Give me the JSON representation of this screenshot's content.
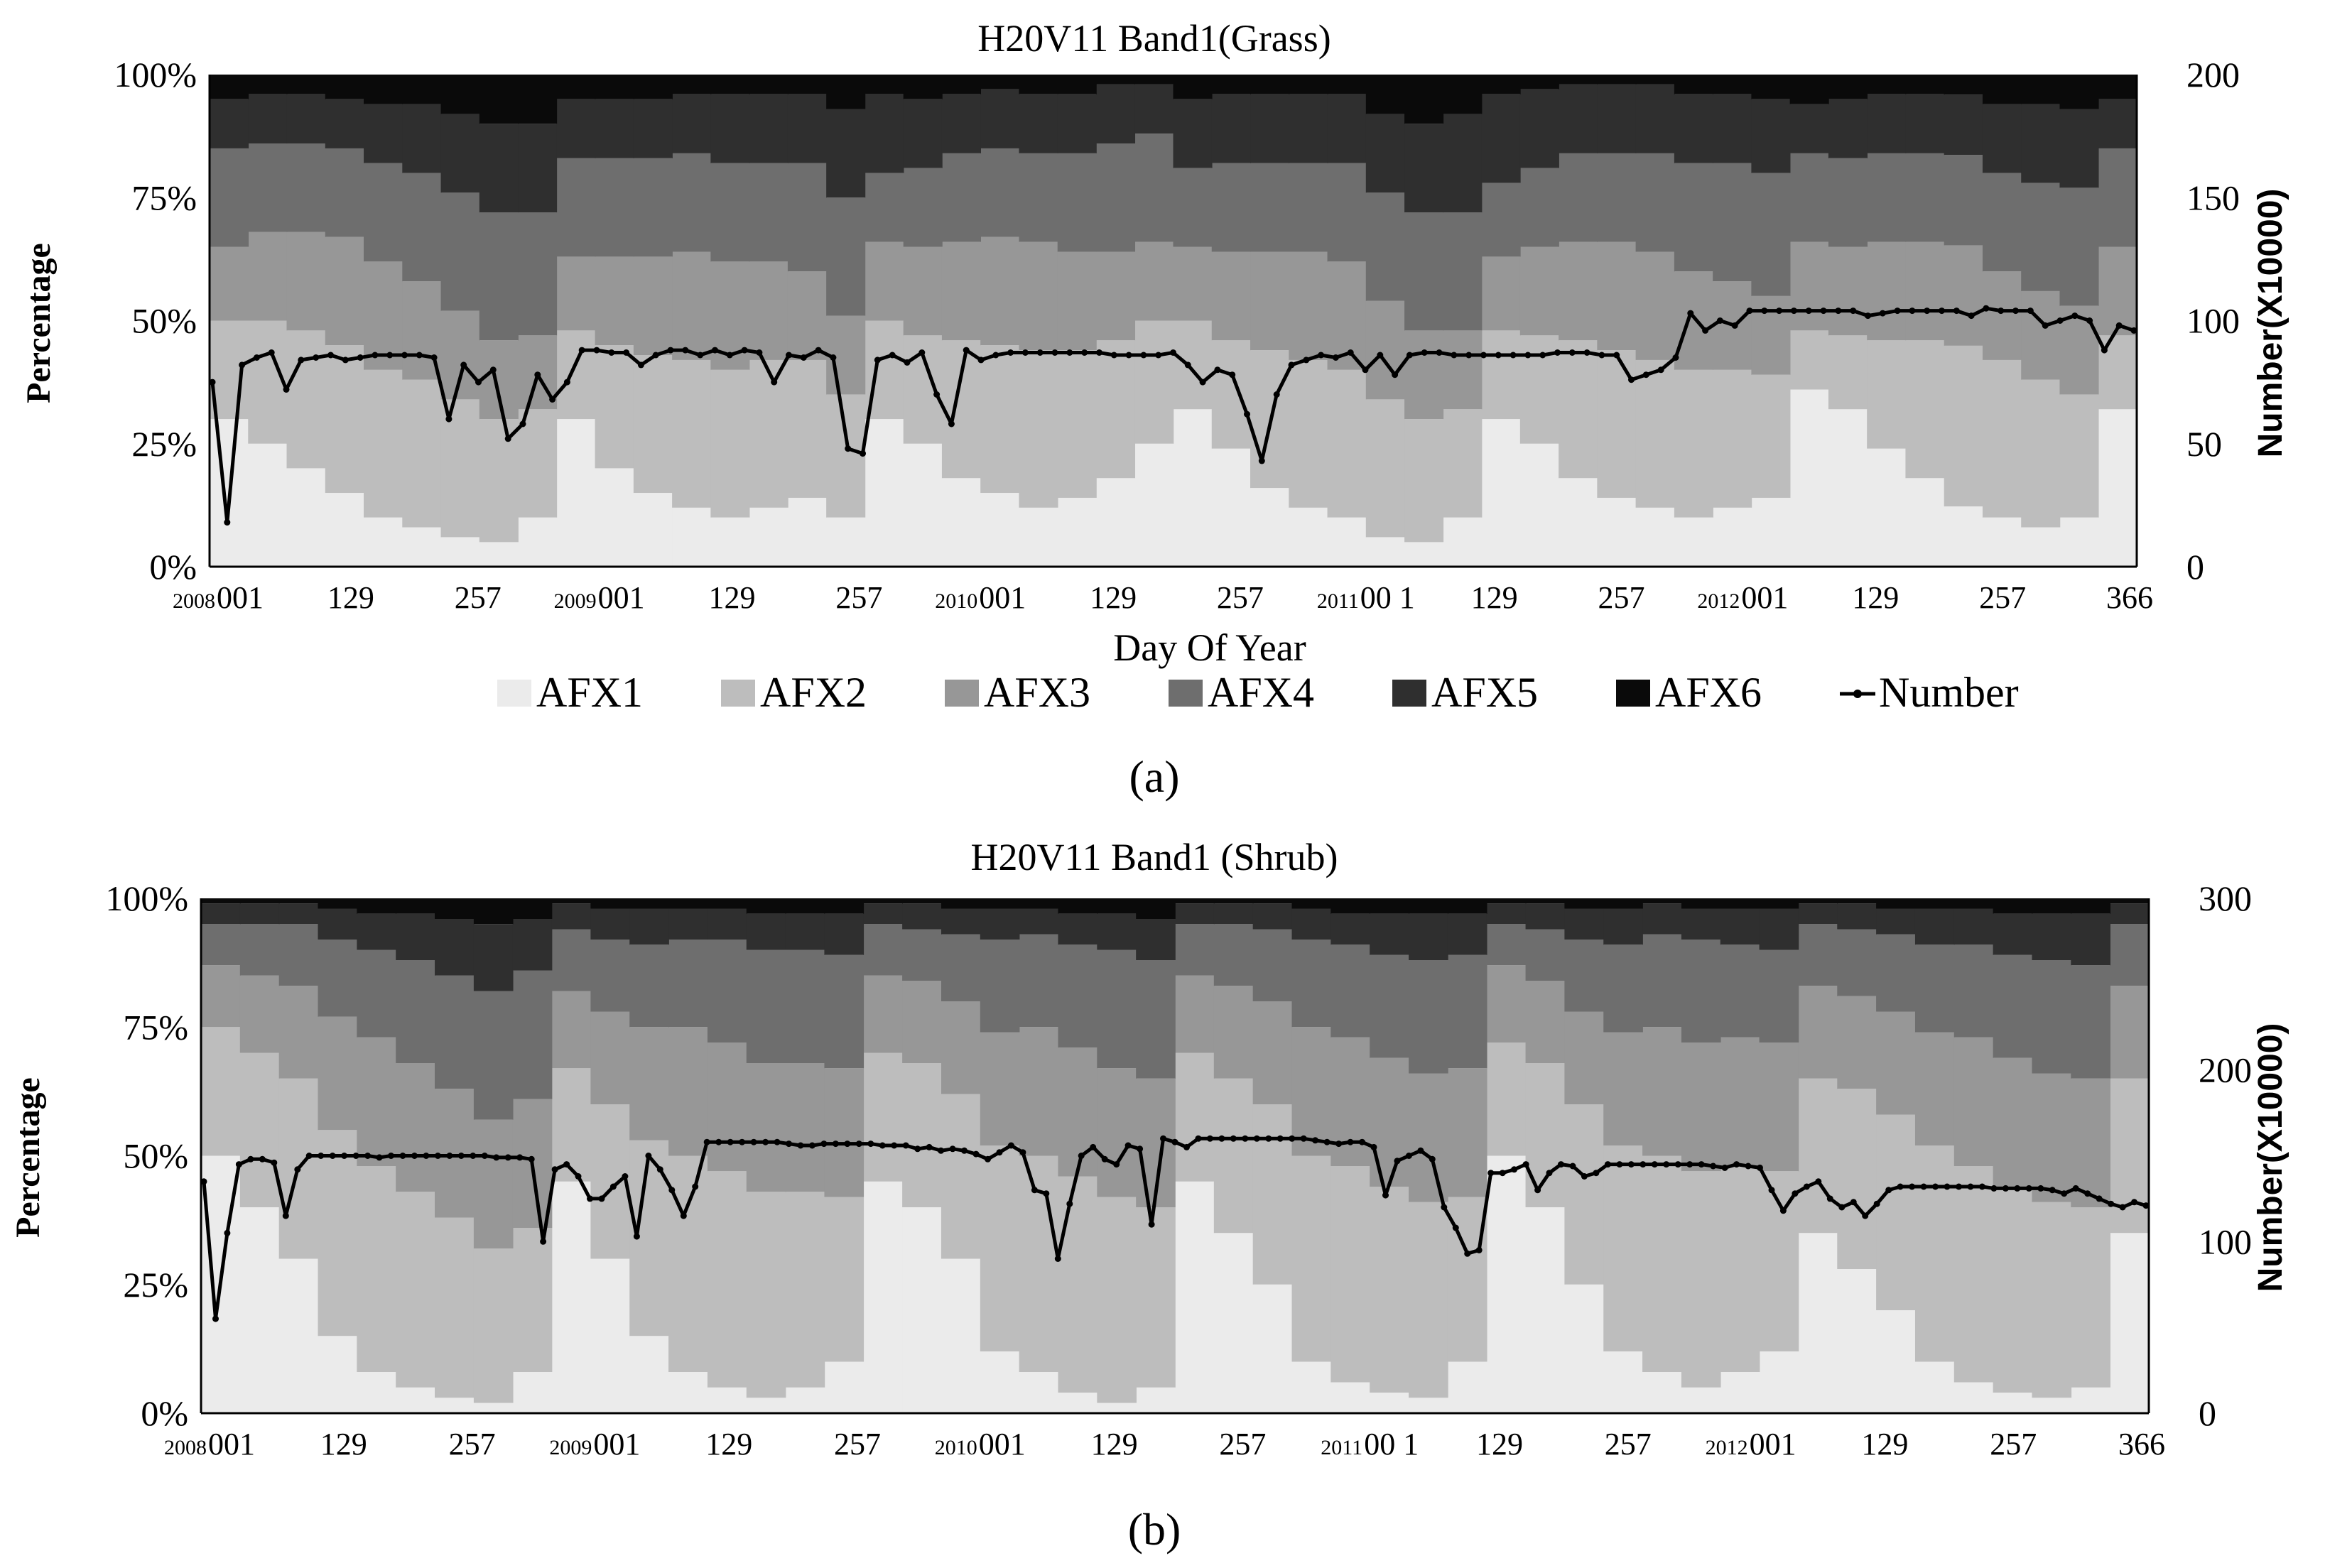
{
  "colors": {
    "AFX1": "#ebebeb",
    "AFX2": "#bdbdbd",
    "AFX3": "#979797",
    "AFX4": "#6e6e6e",
    "AFX5": "#2f2f2f",
    "AFX6": "#0a0a0a",
    "Number": "#000000"
  },
  "legend": [
    "AFX1",
    "AFX2",
    "AFX3",
    "AFX4",
    "AFX5",
    "AFX6",
    "Number"
  ],
  "chart_data": [
    {
      "id": "a",
      "panel_label": "(a)",
      "type": "area",
      "title": "H20V11 Band1(Grass)",
      "xlabel": "Day Of Year",
      "ylabel": "Percentage",
      "y2label": "Number(X10000)",
      "ylim": [
        0,
        100
      ],
      "y2lim": [
        0,
        200
      ],
      "y_ticks": [
        "0%",
        "25%",
        "50%",
        "75%",
        "100%"
      ],
      "y2_ticks": [
        "0",
        "50",
        "100",
        "150",
        "200"
      ],
      "x_ticks": [
        {
          "year": "2008",
          "label": "001"
        },
        {
          "year": "",
          "label": "129"
        },
        {
          "year": "",
          "label": "257"
        },
        {
          "year": "2009",
          "label": "001"
        },
        {
          "year": "",
          "label": "129"
        },
        {
          "year": "",
          "label": "257"
        },
        {
          "year": "2010",
          "label": "001"
        },
        {
          "year": "",
          "label": "129"
        },
        {
          "year": "",
          "label": "257"
        },
        {
          "year": "2011",
          "label": "00 1"
        },
        {
          "year": "",
          "label": "129"
        },
        {
          "year": "",
          "label": "257"
        },
        {
          "year": "2012",
          "label": "001"
        },
        {
          "year": "",
          "label": "129"
        },
        {
          "year": "",
          "label": "257"
        },
        {
          "year": "",
          "label": "366"
        }
      ],
      "series": [
        {
          "name": "AFX1",
          "values": [
            30,
            25,
            20,
            15,
            10,
            8,
            6,
            5,
            10,
            30,
            20,
            15,
            12,
            10,
            12,
            14,
            10,
            30,
            25,
            18,
            15,
            12,
            14,
            18,
            25,
            32,
            24,
            16,
            12,
            10,
            6,
            5,
            10,
            30,
            25,
            18,
            14,
            12,
            10,
            12,
            14,
            36,
            32,
            24,
            18,
            12,
            10,
            8,
            10,
            32
          ]
        },
        {
          "name": "AFX2",
          "values": [
            20,
            25,
            28,
            30,
            30,
            30,
            28,
            25,
            22,
            18,
            25,
            28,
            30,
            30,
            30,
            28,
            25,
            20,
            22,
            28,
            30,
            32,
            30,
            28,
            25,
            18,
            22,
            28,
            30,
            30,
            28,
            25,
            22,
            18,
            22,
            28,
            30,
            30,
            30,
            28,
            25,
            12,
            15,
            22,
            28,
            32,
            32,
            30,
            25,
            15
          ]
        },
        {
          "name": "AFX3",
          "values": [
            15,
            18,
            20,
            22,
            22,
            20,
            18,
            16,
            15,
            15,
            18,
            20,
            22,
            22,
            20,
            18,
            16,
            16,
            18,
            20,
            22,
            22,
            20,
            18,
            16,
            15,
            18,
            20,
            22,
            22,
            20,
            18,
            16,
            15,
            18,
            20,
            22,
            22,
            20,
            18,
            16,
            18,
            18,
            20,
            20,
            20,
            18,
            18,
            18,
            18
          ]
        },
        {
          "name": "AFX4",
          "values": [
            20,
            18,
            18,
            18,
            20,
            22,
            24,
            26,
            25,
            20,
            20,
            20,
            20,
            20,
            20,
            22,
            24,
            14,
            16,
            18,
            18,
            18,
            20,
            22,
            22,
            16,
            18,
            18,
            18,
            20,
            22,
            24,
            24,
            15,
            16,
            18,
            18,
            20,
            22,
            24,
            25,
            18,
            18,
            18,
            18,
            18,
            20,
            22,
            24,
            20
          ]
        },
        {
          "name": "AFX5",
          "values": [
            10,
            10,
            10,
            10,
            12,
            14,
            16,
            18,
            18,
            12,
            12,
            12,
            12,
            14,
            14,
            14,
            18,
            16,
            14,
            12,
            12,
            12,
            12,
            12,
            10,
            14,
            14,
            14,
            14,
            14,
            16,
            18,
            20,
            18,
            16,
            14,
            14,
            14,
            14,
            14,
            15,
            10,
            12,
            12,
            12,
            12,
            14,
            16,
            16,
            10
          ]
        },
        {
          "name": "AFX6",
          "values": [
            5,
            4,
            4,
            5,
            6,
            6,
            8,
            10,
            10,
            5,
            5,
            5,
            4,
            4,
            4,
            4,
            7,
            4,
            5,
            4,
            3,
            4,
            4,
            2,
            2,
            5,
            4,
            4,
            4,
            4,
            8,
            10,
            8,
            4,
            3,
            2,
            2,
            2,
            4,
            4,
            5,
            6,
            5,
            4,
            4,
            4,
            6,
            6,
            7,
            5
          ]
        },
        {
          "name": "Number",
          "axis": "right",
          "values": [
            75,
            18,
            82,
            85,
            87,
            72,
            84,
            85,
            86,
            84,
            85,
            86,
            86,
            86,
            86,
            85,
            60,
            82,
            75,
            80,
            52,
            58,
            78,
            68,
            75,
            88,
            88,
            87,
            87,
            82,
            86,
            88,
            88,
            86,
            88,
            86,
            88,
            87,
            75,
            86,
            85,
            88,
            85,
            48,
            46,
            84,
            86,
            83,
            87,
            70,
            58,
            88,
            84,
            86,
            87,
            87,
            87,
            87,
            87,
            87,
            87,
            86,
            86,
            86,
            86,
            87,
            82,
            75,
            80,
            78,
            62,
            43,
            70,
            82,
            84,
            86,
            85,
            87,
            80,
            86,
            78,
            86,
            87,
            87,
            86,
            86,
            86,
            86,
            86,
            86,
            86,
            87,
            87,
            87,
            86,
            86,
            76,
            78,
            80,
            85,
            103,
            96,
            100,
            98,
            104,
            104,
            104,
            104,
            104,
            104,
            104,
            104,
            102,
            103,
            104,
            104,
            104,
            104,
            104,
            102,
            105,
            104,
            104,
            104,
            98,
            100,
            102,
            100,
            88,
            98,
            96
          ]
        }
      ]
    },
    {
      "id": "b",
      "panel_label": "(b)",
      "type": "area",
      "title": "H20V11 Band1 (Shrub)",
      "xlabel": "",
      "ylabel": "Percentage",
      "y2label": "Number(X10000)",
      "ylim": [
        0,
        100
      ],
      "y2lim": [
        0,
        300
      ],
      "y_ticks": [
        "0%",
        "25%",
        "50%",
        "75%",
        "100%"
      ],
      "y2_ticks": [
        "0",
        "100",
        "200",
        "300"
      ],
      "x_ticks": [
        {
          "year": "2008",
          "label": "001"
        },
        {
          "year": "",
          "label": "129"
        },
        {
          "year": "",
          "label": "257"
        },
        {
          "year": "2009",
          "label": "001"
        },
        {
          "year": "",
          "label": "129"
        },
        {
          "year": "",
          "label": "257"
        },
        {
          "year": "2010",
          "label": "001"
        },
        {
          "year": "",
          "label": "129"
        },
        {
          "year": "",
          "label": "257"
        },
        {
          "year": "2011",
          "label": "00 1"
        },
        {
          "year": "",
          "label": "129"
        },
        {
          "year": "",
          "label": "257"
        },
        {
          "year": "2012",
          "label": "001"
        },
        {
          "year": "",
          "label": "129"
        },
        {
          "year": "",
          "label": "257"
        },
        {
          "year": "",
          "label": "366"
        }
      ],
      "series": [
        {
          "name": "AFX1",
          "values": [
            50,
            40,
            30,
            15,
            8,
            5,
            3,
            2,
            8,
            45,
            30,
            15,
            8,
            5,
            3,
            5,
            10,
            45,
            40,
            30,
            12,
            8,
            4,
            2,
            5,
            45,
            35,
            25,
            10,
            6,
            4,
            3,
            10,
            50,
            40,
            25,
            12,
            8,
            5,
            8,
            12,
            35,
            28,
            20,
            10,
            6,
            4,
            3,
            5,
            35
          ]
        },
        {
          "name": "AFX2",
          "values": [
            25,
            30,
            35,
            40,
            40,
            38,
            35,
            30,
            28,
            22,
            30,
            38,
            42,
            42,
            40,
            38,
            32,
            25,
            28,
            32,
            40,
            42,
            42,
            40,
            35,
            25,
            30,
            35,
            40,
            42,
            40,
            38,
            32,
            22,
            28,
            35,
            40,
            42,
            42,
            40,
            35,
            30,
            35,
            38,
            42,
            42,
            40,
            38,
            35,
            30
          ]
        },
        {
          "name": "AFX3",
          "values": [
            12,
            15,
            18,
            22,
            25,
            25,
            25,
            25,
            25,
            15,
            18,
            22,
            25,
            25,
            25,
            25,
            25,
            15,
            16,
            18,
            22,
            25,
            25,
            25,
            25,
            15,
            18,
            20,
            25,
            25,
            25,
            25,
            25,
            15,
            16,
            18,
            22,
            25,
            25,
            25,
            25,
            18,
            18,
            20,
            22,
            25,
            25,
            25,
            25,
            18
          ]
        },
        {
          "name": "AFX4",
          "values": [
            8,
            10,
            12,
            15,
            17,
            20,
            22,
            25,
            25,
            12,
            14,
            16,
            17,
            20,
            22,
            22,
            22,
            10,
            10,
            13,
            18,
            18,
            20,
            23,
            23,
            10,
            12,
            14,
            17,
            18,
            20,
            22,
            22,
            8,
            10,
            14,
            17,
            18,
            20,
            18,
            18,
            12,
            13,
            15,
            17,
            18,
            20,
            22,
            22,
            12
          ]
        },
        {
          "name": "AFX5",
          "values": [
            4,
            4,
            4,
            6,
            7,
            9,
            11,
            13,
            10,
            5,
            6,
            7,
            6,
            6,
            7,
            7,
            8,
            4,
            5,
            5,
            6,
            5,
            6,
            7,
            8,
            4,
            4,
            5,
            6,
            6,
            8,
            9,
            8,
            4,
            5,
            6,
            7,
            6,
            6,
            7,
            8,
            4,
            5,
            5,
            7,
            7,
            8,
            9,
            10,
            4
          ]
        },
        {
          "name": "AFX6",
          "values": [
            1,
            1,
            1,
            2,
            3,
            3,
            4,
            5,
            4,
            1,
            2,
            2,
            2,
            2,
            3,
            3,
            3,
            1,
            1,
            2,
            2,
            2,
            3,
            3,
            4,
            1,
            1,
            1,
            2,
            3,
            3,
            3,
            3,
            1,
            1,
            2,
            2,
            1,
            2,
            2,
            2,
            1,
            1,
            2,
            2,
            2,
            3,
            3,
            3,
            1
          ]
        },
        {
          "name": "Number",
          "axis": "right",
          "values": [
            135,
            55,
            105,
            145,
            148,
            148,
            146,
            115,
            142,
            150,
            150,
            150,
            150,
            150,
            150,
            149,
            150,
            150,
            150,
            150,
            150,
            150,
            150,
            150,
            150,
            149,
            149,
            149,
            148,
            100,
            142,
            145,
            138,
            125,
            125,
            132,
            138,
            103,
            150,
            142,
            130,
            115,
            132,
            158,
            158,
            158,
            158,
            158,
            158,
            158,
            157,
            156,
            156,
            157,
            157,
            157,
            157,
            157,
            156,
            156,
            156,
            154,
            155,
            153,
            154,
            153,
            151,
            148,
            152,
            156,
            152,
            130,
            128,
            90,
            122,
            150,
            155,
            148,
            145,
            156,
            154,
            110,
            160,
            158,
            155,
            160,
            160,
            160,
            160,
            160,
            160,
            160,
            160,
            160,
            160,
            159,
            158,
            157,
            158,
            158,
            155,
            127,
            147,
            150,
            153,
            148,
            120,
            108,
            93,
            95,
            140,
            140,
            142,
            145,
            130,
            140,
            145,
            144,
            138,
            140,
            145,
            145,
            145,
            145,
            145,
            145,
            145,
            145,
            145,
            144,
            143,
            145,
            144,
            143,
            130,
            118,
            128,
            132,
            135,
            125,
            120,
            123,
            115,
            122,
            130,
            132,
            132,
            132,
            132,
            132,
            132,
            132,
            132,
            131,
            131,
            131,
            131,
            131,
            130,
            128,
            131,
            128,
            125,
            122,
            120,
            123,
            121
          ]
        }
      ]
    }
  ]
}
